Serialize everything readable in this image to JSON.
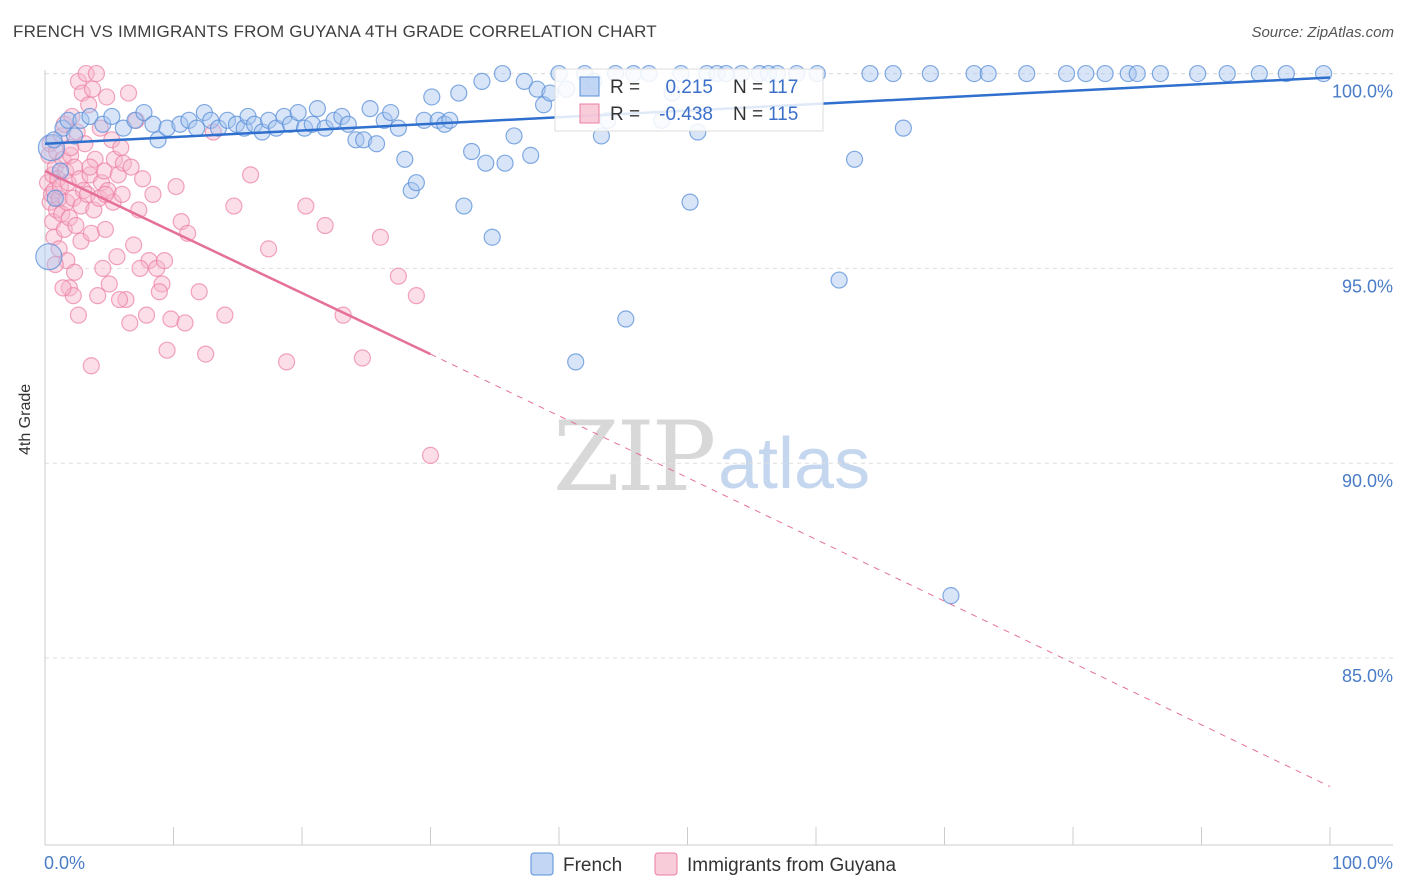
{
  "title": "FRENCH VS IMMIGRANTS FROM GUYANA 4TH GRADE CORRELATION CHART",
  "source": "Source: ZipAtlas.com",
  "watermark": {
    "zip": "ZIP",
    "atlas": "atlas"
  },
  "colors": {
    "french_fill": "#a9c6f0",
    "french_stroke": "#5a8fd8",
    "french_line": "#2f6fce",
    "guyana_fill": "#f7b6cb",
    "guyana_stroke": "#ec7fa3",
    "guyana_line": "#e5709a",
    "grid": "#dedede",
    "axis_text": "#4a7cc7"
  },
  "legend": {
    "rows": [
      {
        "r_label": "R =",
        "r_value": "0.215",
        "n_label": "N =",
        "n_value": "117"
      },
      {
        "r_label": "R =",
        "r_value": "-0.438",
        "n_label": "N =",
        "n_value": "115"
      }
    ]
  },
  "bottom_legend": [
    "French",
    "Immigrants from Guyana"
  ],
  "chart_data": {
    "type": "scatter",
    "title": "FRENCH VS IMMIGRANTS FROM GUYANA 4TH GRADE CORRELATION CHART",
    "xlabel": "",
    "ylabel": "4th Grade",
    "xlim": [
      0,
      100
    ],
    "ylim": [
      80.2,
      100.4
    ],
    "x_tick_labels": [
      "0.0%",
      "100.0%"
    ],
    "y_ticks": [
      100,
      95,
      90,
      85
    ],
    "y_tick_labels": [
      "100.0%",
      "95.0%",
      "90.0%",
      "85.0%"
    ],
    "grid": true,
    "legend_position": "top-center",
    "series": [
      {
        "name": "French",
        "r": 0.215,
        "n": 117,
        "trend": {
          "x": [
            0,
            100
          ],
          "y": [
            98.2,
            99.9
          ]
        },
        "points": [
          [
            0.3,
            95.3
          ],
          [
            0.5,
            98.1
          ],
          [
            0.7,
            98.3
          ],
          [
            0.8,
            96.8
          ],
          [
            1.2,
            97.5
          ],
          [
            1.4,
            98.6
          ],
          [
            1.8,
            98.8
          ],
          [
            2.3,
            98.4
          ],
          [
            2.8,
            98.8
          ],
          [
            3.5,
            98.9
          ],
          [
            4.5,
            98.7
          ],
          [
            5.2,
            98.9
          ],
          [
            6.1,
            98.6
          ],
          [
            7.0,
            98.8
          ],
          [
            7.7,
            99.0
          ],
          [
            8.4,
            98.7
          ],
          [
            8.8,
            98.3
          ],
          [
            9.5,
            98.6
          ],
          [
            10.5,
            98.7
          ],
          [
            11.2,
            98.8
          ],
          [
            11.8,
            98.6
          ],
          [
            12.4,
            99.0
          ],
          [
            12.9,
            98.8
          ],
          [
            13.5,
            98.6
          ],
          [
            14.2,
            98.8
          ],
          [
            14.9,
            98.7
          ],
          [
            15.5,
            98.6
          ],
          [
            15.8,
            98.9
          ],
          [
            16.3,
            98.7
          ],
          [
            16.9,
            98.5
          ],
          [
            17.4,
            98.8
          ],
          [
            18.0,
            98.6
          ],
          [
            18.6,
            98.9
          ],
          [
            19.1,
            98.7
          ],
          [
            19.7,
            99.0
          ],
          [
            20.2,
            98.6
          ],
          [
            20.8,
            98.7
          ],
          [
            21.2,
            99.1
          ],
          [
            21.8,
            98.6
          ],
          [
            22.5,
            98.8
          ],
          [
            23.1,
            98.9
          ],
          [
            23.6,
            98.7
          ],
          [
            24.2,
            98.3
          ],
          [
            24.8,
            98.3
          ],
          [
            25.3,
            99.1
          ],
          [
            25.8,
            98.2
          ],
          [
            26.4,
            98.8
          ],
          [
            26.9,
            99.0
          ],
          [
            27.5,
            98.6
          ],
          [
            28.0,
            97.8
          ],
          [
            28.5,
            97.0
          ],
          [
            28.9,
            97.2
          ],
          [
            29.5,
            98.8
          ],
          [
            30.1,
            99.4
          ],
          [
            30.6,
            98.8
          ],
          [
            31.1,
            98.7
          ],
          [
            31.5,
            98.8
          ],
          [
            32.2,
            99.5
          ],
          [
            32.6,
            96.6
          ],
          [
            33.2,
            98.0
          ],
          [
            34.0,
            99.8
          ],
          [
            34.3,
            97.7
          ],
          [
            34.8,
            95.8
          ],
          [
            35.6,
            100.0
          ],
          [
            35.8,
            97.7
          ],
          [
            36.5,
            98.4
          ],
          [
            37.3,
            99.8
          ],
          [
            37.8,
            97.9
          ],
          [
            38.3,
            99.6
          ],
          [
            38.8,
            99.2
          ],
          [
            39.3,
            99.5
          ],
          [
            40.0,
            100.0
          ],
          [
            40.6,
            99.6
          ],
          [
            41.3,
            92.6
          ],
          [
            42.0,
            100.0
          ],
          [
            42.7,
            99.8
          ],
          [
            43.3,
            98.4
          ],
          [
            43.8,
            98.8
          ],
          [
            44.4,
            100.0
          ],
          [
            45.2,
            93.7
          ],
          [
            45.8,
            100.0
          ],
          [
            47.0,
            100.0
          ],
          [
            48.0,
            98.8
          ],
          [
            48.8,
            99.5
          ],
          [
            49.5,
            100.0
          ],
          [
            50.2,
            96.7
          ],
          [
            50.8,
            98.5
          ],
          [
            51.5,
            100.0
          ],
          [
            52.3,
            100.0
          ],
          [
            53.0,
            100.0
          ],
          [
            54.2,
            100.0
          ],
          [
            55.6,
            100.0
          ],
          [
            56.3,
            100.0
          ],
          [
            57.0,
            100.0
          ],
          [
            58.5,
            100.0
          ],
          [
            60.1,
            100.0
          ],
          [
            61.8,
            94.7
          ],
          [
            63.0,
            97.8
          ],
          [
            64.2,
            100.0
          ],
          [
            66.8,
            98.6
          ],
          [
            68.9,
            100.0
          ],
          [
            70.5,
            86.6
          ],
          [
            72.3,
            100.0
          ],
          [
            73.4,
            100.0
          ],
          [
            76.4,
            100.0
          ],
          [
            79.5,
            100.0
          ],
          [
            82.5,
            100.0
          ],
          [
            86.8,
            100.0
          ],
          [
            89.7,
            100.0
          ],
          [
            92.0,
            100.0
          ],
          [
            94.5,
            100.0
          ],
          [
            96.6,
            100.0
          ],
          [
            99.5,
            100.0
          ],
          [
            84.3,
            100.0
          ],
          [
            85.0,
            100.0
          ],
          [
            81.0,
            100.0
          ],
          [
            66.0,
            100.0
          ]
        ]
      },
      {
        "name": "Immigrants from Guyana",
        "r": -0.438,
        "n": 115,
        "trend": {
          "x": [
            0,
            30
          ],
          "y": [
            97.5,
            92.8
          ],
          "x_dashed_end": 100,
          "y_dashed_end": 81.7
        },
        "points": [
          [
            0.2,
            97.2
          ],
          [
            0.3,
            97.9
          ],
          [
            0.4,
            96.7
          ],
          [
            0.4,
            98.2
          ],
          [
            0.5,
            96.9
          ],
          [
            0.6,
            97.4
          ],
          [
            0.6,
            96.2
          ],
          [
            0.7,
            97.0
          ],
          [
            0.7,
            95.8
          ],
          [
            0.8,
            97.6
          ],
          [
            0.9,
            96.5
          ],
          [
            0.9,
            98.0
          ],
          [
            1.0,
            97.3
          ],
          [
            1.1,
            96.8
          ],
          [
            1.1,
            95.5
          ],
          [
            1.2,
            97.1
          ],
          [
            1.3,
            98.4
          ],
          [
            1.3,
            96.4
          ],
          [
            1.4,
            97.8
          ],
          [
            1.5,
            96.0
          ],
          [
            1.5,
            98.7
          ],
          [
            1.6,
            97.5
          ],
          [
            1.7,
            96.7
          ],
          [
            1.7,
            95.2
          ],
          [
            1.8,
            97.2
          ],
          [
            1.9,
            96.3
          ],
          [
            2.0,
            97.9
          ],
          [
            2.1,
            98.9
          ],
          [
            2.2,
            96.8
          ],
          [
            2.3,
            94.9
          ],
          [
            2.3,
            97.6
          ],
          [
            2.4,
            96.1
          ],
          [
            2.5,
            98.5
          ],
          [
            2.6,
            99.8
          ],
          [
            2.7,
            97.3
          ],
          [
            2.8,
            96.6
          ],
          [
            2.8,
            95.7
          ],
          [
            2.9,
            99.5
          ],
          [
            3.0,
            97.0
          ],
          [
            3.1,
            98.2
          ],
          [
            3.2,
            100.0
          ],
          [
            3.3,
            96.9
          ],
          [
            3.4,
            99.2
          ],
          [
            3.5,
            97.4
          ],
          [
            3.6,
            95.9
          ],
          [
            3.7,
            99.6
          ],
          [
            3.8,
            96.5
          ],
          [
            3.9,
            97.8
          ],
          [
            4.0,
            100.0
          ],
          [
            4.1,
            94.3
          ],
          [
            4.2,
            96.8
          ],
          [
            4.3,
            98.6
          ],
          [
            4.4,
            97.2
          ],
          [
            4.5,
            95.0
          ],
          [
            4.6,
            97.5
          ],
          [
            4.7,
            96.0
          ],
          [
            4.8,
            99.4
          ],
          [
            4.9,
            97.0
          ],
          [
            5.0,
            94.6
          ],
          [
            5.2,
            98.3
          ],
          [
            5.3,
            96.7
          ],
          [
            5.4,
            97.8
          ],
          [
            5.6,
            95.3
          ],
          [
            5.7,
            97.4
          ],
          [
            5.9,
            98.1
          ],
          [
            6.0,
            96.9
          ],
          [
            6.1,
            97.7
          ],
          [
            6.3,
            94.2
          ],
          [
            6.5,
            99.5
          ],
          [
            6.7,
            97.6
          ],
          [
            6.9,
            95.6
          ],
          [
            7.1,
            98.8
          ],
          [
            7.3,
            96.5
          ],
          [
            7.6,
            97.3
          ],
          [
            7.9,
            93.8
          ],
          [
            8.1,
            95.2
          ],
          [
            8.4,
            96.9
          ],
          [
            8.7,
            95.0
          ],
          [
            9.1,
            94.6
          ],
          [
            9.5,
            92.9
          ],
          [
            9.8,
            93.7
          ],
          [
            10.2,
            97.1
          ],
          [
            10.6,
            96.2
          ],
          [
            11.1,
            95.9
          ],
          [
            12.0,
            94.4
          ],
          [
            13.1,
            98.5
          ],
          [
            14.0,
            93.8
          ],
          [
            14.7,
            96.6
          ],
          [
            16.0,
            97.4
          ],
          [
            17.4,
            95.5
          ],
          [
            18.8,
            92.6
          ],
          [
            20.3,
            96.6
          ],
          [
            21.8,
            96.1
          ],
          [
            23.2,
            93.8
          ],
          [
            24.7,
            92.7
          ],
          [
            26.1,
            95.8
          ],
          [
            27.5,
            94.8
          ],
          [
            28.9,
            94.3
          ],
          [
            30.0,
            90.2
          ],
          [
            2.6,
            93.8
          ],
          [
            3.6,
            92.5
          ],
          [
            1.9,
            94.5
          ],
          [
            2.2,
            94.3
          ],
          [
            1.4,
            94.5
          ],
          [
            0.8,
            95.1
          ],
          [
            5.8,
            94.2
          ],
          [
            6.6,
            93.6
          ],
          [
            7.4,
            95.0
          ],
          [
            8.9,
            94.4
          ],
          [
            9.3,
            95.2
          ],
          [
            10.9,
            93.6
          ],
          [
            12.5,
            92.8
          ],
          [
            4.7,
            96.9
          ],
          [
            3.5,
            97.6
          ],
          [
            2.0,
            98.1
          ]
        ]
      }
    ]
  }
}
